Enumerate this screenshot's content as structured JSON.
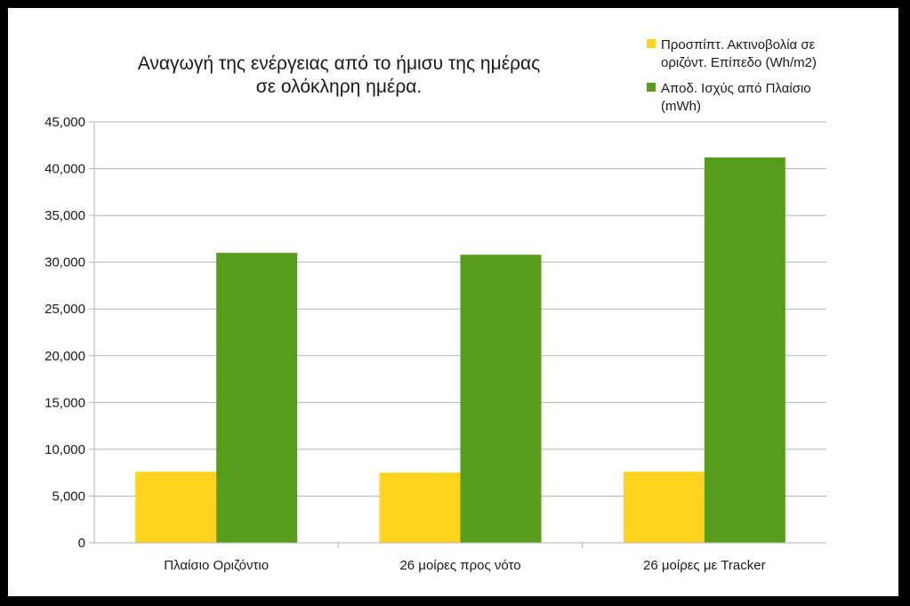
{
  "chart_data": {
    "type": "bar",
    "title_lines": [
      "Αναγωγή της ενέργειας από το ήμισυ της ημέρας",
      "σε ολόκληρη ημέρα."
    ],
    "categories": [
      "Πλαίσιο Οριζόντιο",
      "26 μοίρες προς νότο",
      "26 μοίρες με Tracker"
    ],
    "series": [
      {
        "name": "Προσπίπτ. Ακτινοβολία σε οριζόντ. Επίπεδο (Wh/m2)",
        "legend_lines": [
          "Προσπίπτ. Ακτινοβολία σε",
          "οριζόντ. Επίπεδο (Wh/m2)"
        ],
        "color": "#ffd320",
        "values": [
          7600,
          7500,
          7600
        ]
      },
      {
        "name": "Αποδ. Ισχύς από Πλαίσιο (mWh)",
        "legend_lines": [
          "Αποδ. Ισχύς από Πλαίσιο",
          "(mWh)"
        ],
        "color": "#579d1c",
        "values": [
          31000,
          30800,
          41200
        ]
      }
    ],
    "ylim": [
      0,
      45000
    ],
    "yticks": [
      0,
      5000,
      10000,
      15000,
      20000,
      25000,
      30000,
      35000,
      40000,
      45000
    ],
    "ytick_labels": [
      "0",
      "5,000",
      "10,000",
      "15,000",
      "20,000",
      "25,000",
      "30,000",
      "35,000",
      "40,000",
      "45,000"
    ],
    "grid": true,
    "legend_position": "top-right",
    "xlabel": "",
    "ylabel": ""
  }
}
